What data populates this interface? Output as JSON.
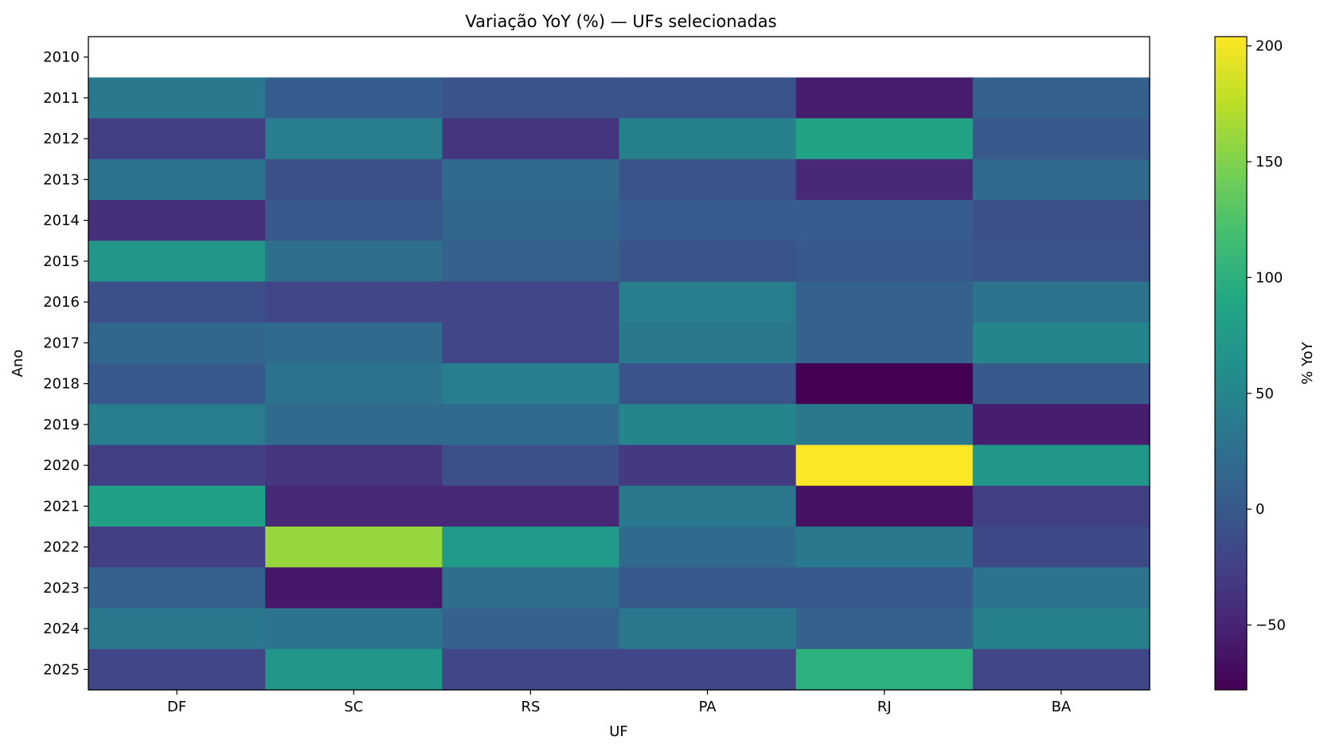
{
  "chart_data": {
    "type": "heatmap",
    "title": "Variação YoY (%) — UFs selecionadas",
    "xlabel": "UF",
    "ylabel": "Ano",
    "x": [
      "DF",
      "SC",
      "RS",
      "PA",
      "RJ",
      "BA"
    ],
    "y": [
      "2010",
      "2011",
      "2012",
      "2013",
      "2014",
      "2015",
      "2016",
      "2017",
      "2018",
      "2019",
      "2020",
      "2021",
      "2022",
      "2023",
      "2024",
      "2025"
    ],
    "values": [
      [
        null,
        null,
        null,
        null,
        null,
        null
      ],
      [
        35,
        5,
        -5,
        -5,
        -55,
        10
      ],
      [
        -25,
        40,
        -35,
        45,
        85,
        0
      ],
      [
        30,
        -10,
        20,
        -5,
        -45,
        20
      ],
      [
        -40,
        0,
        15,
        5,
        5,
        -10
      ],
      [
        70,
        25,
        10,
        -5,
        0,
        -5
      ],
      [
        -10,
        -20,
        -20,
        40,
        10,
        30
      ],
      [
        15,
        20,
        -20,
        35,
        10,
        50
      ],
      [
        0,
        30,
        40,
        -5,
        -78,
        0
      ],
      [
        40,
        20,
        20,
        50,
        35,
        -55
      ],
      [
        -25,
        -35,
        -10,
        -30,
        203,
        70
      ],
      [
        80,
        -45,
        -45,
        35,
        -65,
        -25
      ],
      [
        -25,
        160,
        75,
        20,
        35,
        -15
      ],
      [
        10,
        -60,
        25,
        0,
        0,
        30
      ],
      [
        35,
        30,
        10,
        35,
        10,
        45
      ],
      [
        -20,
        70,
        -20,
        -20,
        100,
        -20
      ]
    ],
    "colorbar": {
      "label": "% YoY",
      "min": -78,
      "max": 204,
      "ticks": [
        200,
        150,
        100,
        50,
        0,
        -50
      ],
      "tick_labels": [
        "200",
        "150",
        "100",
        "50",
        "0",
        "−50"
      ],
      "colormap": "viridis"
    }
  }
}
